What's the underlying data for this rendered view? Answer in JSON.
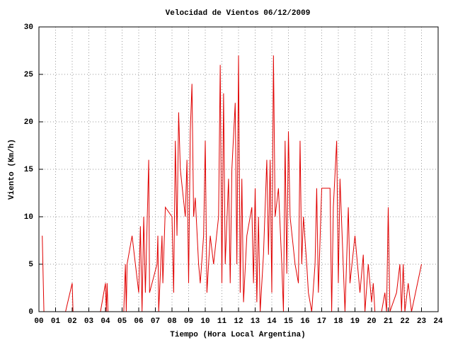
{
  "chart_data": {
    "type": "line",
    "title": "Velocidad de Vientos 06/12/2009",
    "xlabel": "Tiempo (Hora Local Argentina)",
    "ylabel": "Viento (Km/h)",
    "grid": true,
    "xlim": [
      0,
      24
    ],
    "ylim": [
      0,
      30
    ],
    "xticks": [
      {
        "value": 0,
        "label": "00"
      },
      {
        "value": 1,
        "label": "01"
      },
      {
        "value": 2,
        "label": "02"
      },
      {
        "value": 3,
        "label": "03"
      },
      {
        "value": 4,
        "label": "04"
      },
      {
        "value": 5,
        "label": "05"
      },
      {
        "value": 6,
        "label": "06"
      },
      {
        "value": 7,
        "label": "07"
      },
      {
        "value": 8,
        "label": "08"
      },
      {
        "value": 9,
        "label": "09"
      },
      10,
      11,
      12,
      13,
      14,
      15,
      16,
      17,
      18,
      19,
      20,
      21,
      22,
      23,
      24
    ],
    "yticks": [
      0,
      5,
      10,
      15,
      20,
      25,
      30
    ],
    "x": [
      0.2,
      0.3,
      1.6,
      2.0,
      2.05,
      3.7,
      4.0,
      4.05,
      4.1,
      4.15,
      5.1,
      5.2,
      5.25,
      5.3,
      5.6,
      6.0,
      6.1,
      6.2,
      6.3,
      6.4,
      6.6,
      6.65,
      7.1,
      7.15,
      7.2,
      7.4,
      7.45,
      7.6,
      8.0,
      8.1,
      8.2,
      8.3,
      8.4,
      8.5,
      8.8,
      8.9,
      9.0,
      9.1,
      9.2,
      9.3,
      9.4,
      9.6,
      9.7,
      9.9,
      10.0,
      10.1,
      10.3,
      10.5,
      10.8,
      10.9,
      11.0,
      11.1,
      11.2,
      11.4,
      11.5,
      11.6,
      11.8,
      11.9,
      12.0,
      12.1,
      12.2,
      12.3,
      12.5,
      12.8,
      12.9,
      13.0,
      13.1,
      13.2,
      13.3,
      13.5,
      13.7,
      13.8,
      13.9,
      14.0,
      14.1,
      14.2,
      14.4,
      14.6,
      14.7,
      14.8,
      14.9,
      15.0,
      15.1,
      15.4,
      15.6,
      15.7,
      15.8,
      15.9,
      16.1,
      16.2,
      16.4,
      16.6,
      16.7,
      16.8,
      17.0,
      17.5,
      17.6,
      17.7,
      17.9,
      18.0,
      18.1,
      18.4,
      18.6,
      18.7,
      19.0,
      19.3,
      19.5,
      19.6,
      19.8,
      20.0,
      20.1,
      20.2,
      20.6,
      20.8,
      20.9,
      21.0,
      21.1,
      21.5,
      21.7,
      21.8,
      21.9,
      22.0,
      22.2,
      22.4,
      23.0
    ],
    "series": [
      {
        "color": "#e00000",
        "values": [
          8,
          0,
          0,
          3,
          0,
          0,
          3,
          0,
          3,
          0,
          0,
          5,
          0,
          5,
          8,
          2,
          9,
          0,
          10,
          2,
          16,
          2,
          5,
          8,
          0,
          8,
          3,
          11,
          10,
          2,
          18,
          8,
          21,
          15,
          10,
          16,
          3,
          19,
          24,
          10,
          12,
          5,
          3,
          8,
          18,
          2,
          8,
          5,
          10,
          26,
          3,
          23,
          5,
          14,
          3,
          15,
          22,
          5,
          27,
          2,
          14,
          1,
          8,
          11,
          3,
          13,
          1,
          10,
          0,
          6,
          16,
          6,
          16,
          2,
          27,
          10,
          13,
          5,
          0,
          18,
          4,
          19,
          10,
          5,
          3,
          18,
          5,
          10,
          5,
          2,
          0,
          5,
          13,
          2,
          13,
          13,
          0,
          11,
          18,
          3,
          14,
          0,
          11,
          3,
          8,
          2,
          6,
          0,
          5,
          1,
          3,
          0,
          0,
          2,
          0,
          11,
          0,
          2,
          5,
          0,
          5,
          0,
          3,
          0,
          5
        ]
      }
    ]
  }
}
